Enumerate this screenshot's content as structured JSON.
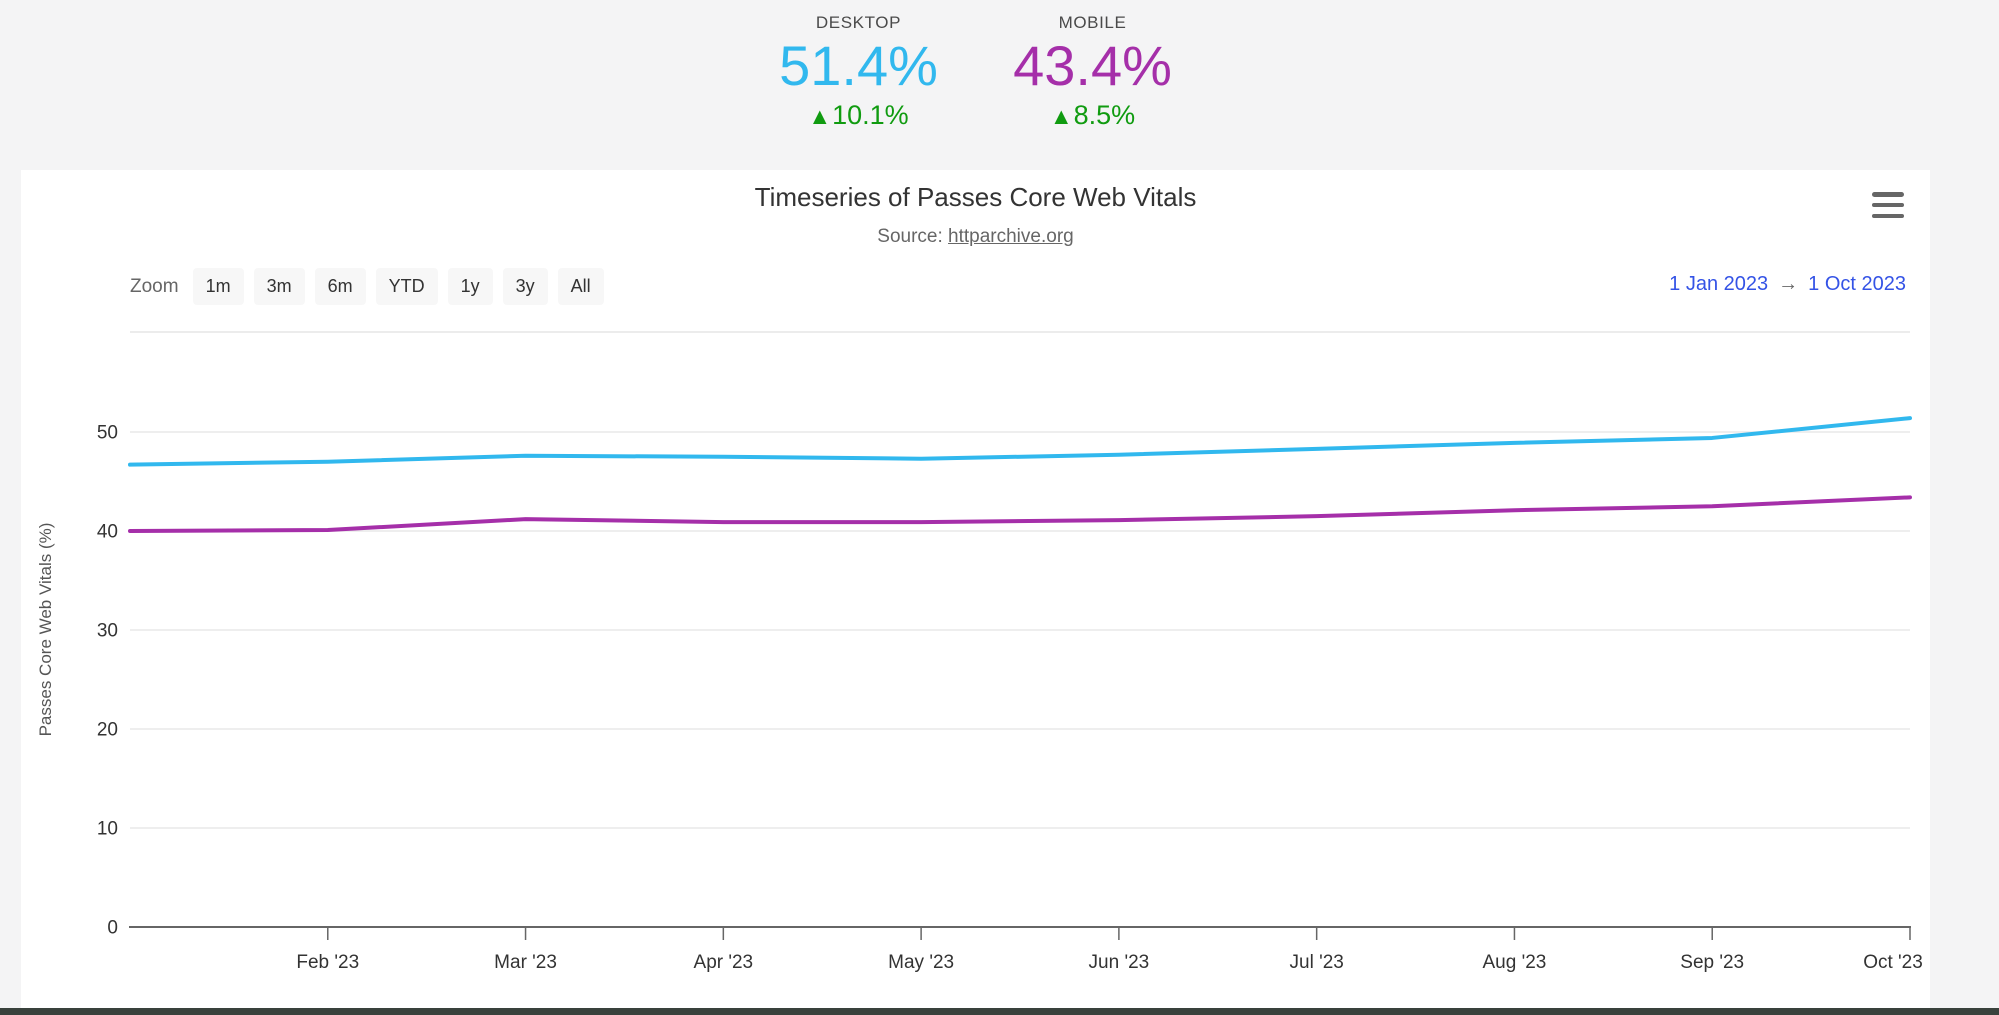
{
  "header": {
    "arrow_up": "▲",
    "delta_color": "#109B10",
    "stats": [
      {
        "label": "DESKTOP",
        "value": "51.4%",
        "delta": "10.1%",
        "value_color": "#31B8EE"
      },
      {
        "label": "MOBILE",
        "value": "43.4%",
        "delta": "8.5%",
        "value_color": "#A52FA9"
      }
    ]
  },
  "controls": {
    "zoom_label": "Zoom",
    "zoom_buttons": [
      "1m",
      "3m",
      "6m",
      "YTD",
      "1y",
      "3y",
      "All"
    ],
    "range_from": "1 Jan 2023",
    "range_arrow": "→",
    "range_to": "1 Oct 2023",
    "range_color": "#3453E6"
  },
  "chart_data": {
    "type": "line",
    "title": "Timeseries of Passes Core Web Vitals",
    "subtitle_prefix": "Source: ",
    "subtitle_link": "httparchive.org",
    "ylabel": "Passes Core Web Vitals (%)",
    "xlabel": "",
    "months": [
      "Jan '23",
      "Feb '23",
      "Mar '23",
      "Apr '23",
      "May '23",
      "Jun '23",
      "Jul '23",
      "Aug '23",
      "Sep '23",
      "Oct '23"
    ],
    "xtick_labels": [
      "Feb '23",
      "Mar '23",
      "Apr '23",
      "May '23",
      "Jun '23",
      "Jul '23",
      "Aug '23",
      "Sep '23",
      "Oct '23"
    ],
    "yticks": [
      0,
      10,
      20,
      30,
      40,
      50
    ],
    "ylim": [
      0,
      60
    ],
    "grid": true,
    "legend_position": "none",
    "series": [
      {
        "name": "Desktop",
        "color": "#31B8EE",
        "values": [
          46.7,
          47.0,
          47.6,
          47.5,
          47.3,
          47.7,
          48.3,
          48.9,
          49.4,
          51.4
        ]
      },
      {
        "name": "Mobile",
        "color": "#A52FA9",
        "values": [
          40.0,
          40.1,
          41.2,
          40.9,
          40.9,
          41.1,
          41.5,
          42.1,
          42.5,
          43.4
        ]
      }
    ]
  }
}
